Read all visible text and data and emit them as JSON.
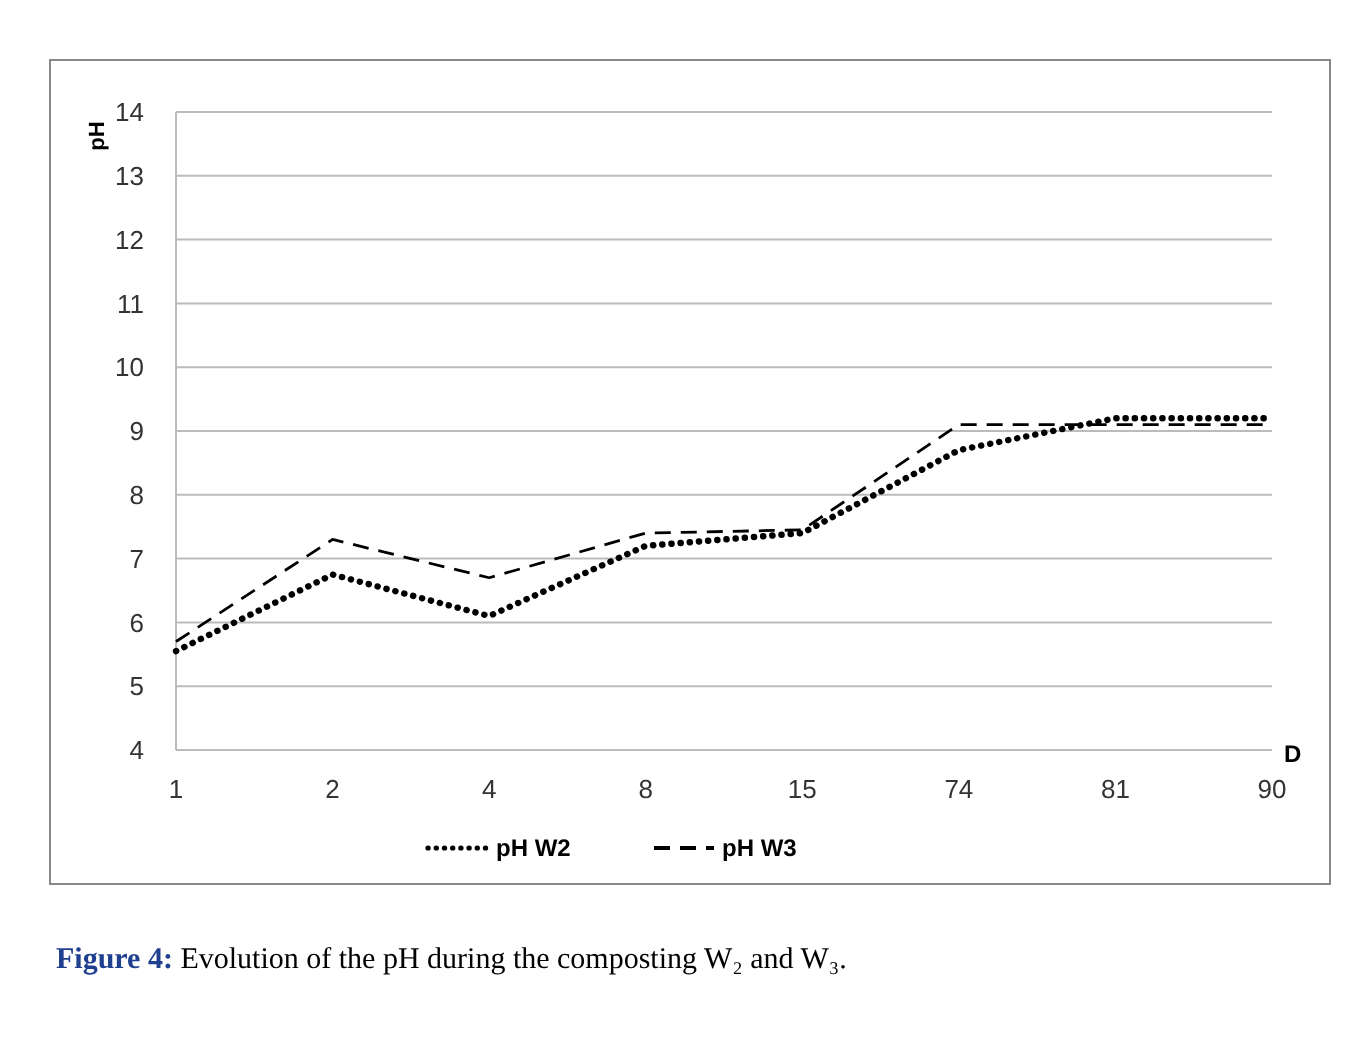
{
  "chart_data": {
    "type": "line",
    "categories": [
      "1",
      "2",
      "4",
      "8",
      "15",
      "74",
      "81",
      "90"
    ],
    "series": [
      {
        "name": "pH W2",
        "color": "#000000",
        "line_style": "dotted",
        "values": [
          5.55,
          6.75,
          6.1,
          7.2,
          7.4,
          8.7,
          9.2,
          9.2
        ]
      },
      {
        "name": "pH W3",
        "color": "#000000",
        "line_style": "dashed",
        "values": [
          5.7,
          7.3,
          6.7,
          7.4,
          7.45,
          9.1,
          9.1,
          9.1
        ]
      }
    ],
    "ylabel": "pH",
    "xlabel": "D",
    "ylim": [
      4,
      14
    ],
    "yticks": [
      4,
      5,
      6,
      7,
      8,
      9,
      10,
      11,
      12,
      13,
      14
    ],
    "grid": "y",
    "legend": "bottom",
    "marker": "none",
    "annotations": [
      "Figure 4: Evolution of the pH during the composting W₂ and W₃."
    ]
  }
}
